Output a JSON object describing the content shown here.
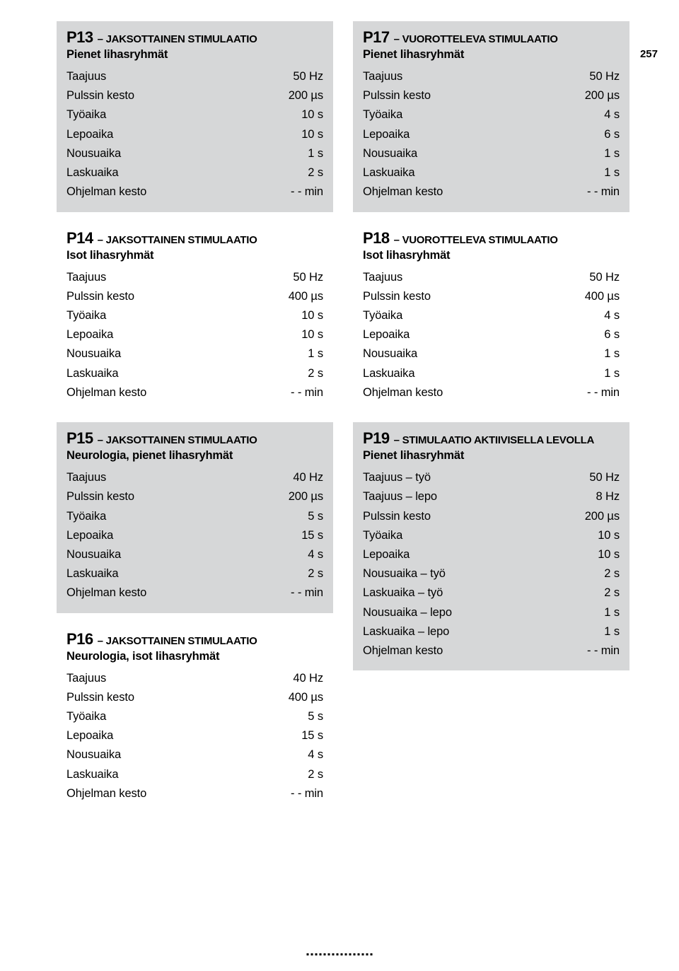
{
  "page_number": "257",
  "colors": {
    "gray_bg": "#d6d7d8",
    "text": "#000000",
    "page_bg": "#ffffff"
  },
  "left": [
    {
      "bg": "gray",
      "pnum": "P13",
      "ptitle": " – JAKSOTTAINEN STIMULAATIO",
      "subtitle": "Pienet lihasryhmät",
      "rows": [
        {
          "label": "Taajuus",
          "value": "50 Hz"
        },
        {
          "label": "Pulssin kesto",
          "value": "200 µs"
        },
        {
          "label": "Työaika",
          "value": "10 s"
        },
        {
          "label": "Lepoaika",
          "value": "10 s"
        },
        {
          "label": "Nousuaika",
          "value": "1 s"
        },
        {
          "label": "Laskuaika",
          "value": "2 s"
        },
        {
          "label": "Ohjelman kesto",
          "value": "- - min"
        }
      ]
    },
    {
      "bg": "white",
      "pnum": "P14",
      "ptitle": " – JAKSOTTAINEN STIMULAATIO",
      "subtitle": "Isot lihasryhmät",
      "rows": [
        {
          "label": "Taajuus",
          "value": "50 Hz"
        },
        {
          "label": "Pulssin kesto",
          "value": "400 µs"
        },
        {
          "label": "Työaika",
          "value": "10 s"
        },
        {
          "label": "Lepoaika",
          "value": "10 s"
        },
        {
          "label": "Nousuaika",
          "value": "1 s"
        },
        {
          "label": "Laskuaika",
          "value": "2 s"
        },
        {
          "label": "Ohjelman kesto",
          "value": "- - min"
        }
      ]
    },
    {
      "bg": "gray",
      "pnum": "P15",
      "ptitle": " – JAKSOTTAINEN STIMULAATIO",
      "subtitle": "Neurologia, pienet lihasryhmät",
      "rows": [
        {
          "label": "Taajuus",
          "value": "40 Hz"
        },
        {
          "label": "Pulssin kesto",
          "value": "200 µs"
        },
        {
          "label": "Työaika",
          "value": "5 s"
        },
        {
          "label": "Lepoaika",
          "value": "15 s"
        },
        {
          "label": "Nousuaika",
          "value": "4 s"
        },
        {
          "label": "Laskuaika",
          "value": "2 s"
        },
        {
          "label": "Ohjelman kesto",
          "value": "- - min"
        }
      ]
    },
    {
      "bg": "white",
      "pnum": "P16",
      "ptitle": " – JAKSOTTAINEN STIMULAATIO",
      "subtitle": "Neurologia, isot lihasryhmät",
      "rows": [
        {
          "label": "Taajuus",
          "value": "40 Hz"
        },
        {
          "label": "Pulssin kesto",
          "value": "400 µs"
        },
        {
          "label": "Työaika",
          "value": "5 s"
        },
        {
          "label": "Lepoaika",
          "value": "15 s"
        },
        {
          "label": "Nousuaika",
          "value": "4 s"
        },
        {
          "label": "Laskuaika",
          "value": "2 s"
        },
        {
          "label": "Ohjelman kesto",
          "value": "- - min"
        }
      ]
    }
  ],
  "right": [
    {
      "bg": "gray",
      "pnum": "P17",
      "ptitle": " – VUOROTTELEVA STIMULAATIO",
      "subtitle": "Pienet lihasryhmät",
      "rows": [
        {
          "label": "Taajuus",
          "value": "50 Hz"
        },
        {
          "label": "Pulssin kesto",
          "value": "200 µs"
        },
        {
          "label": "Työaika",
          "value": "4 s"
        },
        {
          "label": "Lepoaika",
          "value": "6 s"
        },
        {
          "label": "Nousuaika",
          "value": "1 s"
        },
        {
          "label": "Laskuaika",
          "value": "1 s"
        },
        {
          "label": "Ohjelman kesto",
          "value": "- - min"
        }
      ]
    },
    {
      "bg": "white",
      "pnum": "P18",
      "ptitle": " – VUOROTTELEVA STIMULAATIO",
      "subtitle": "Isot lihasryhmät",
      "rows": [
        {
          "label": "Taajuus",
          "value": "50 Hz"
        },
        {
          "label": "Pulssin kesto",
          "value": "400 µs"
        },
        {
          "label": "Työaika",
          "value": "4 s"
        },
        {
          "label": "Lepoaika",
          "value": "6 s"
        },
        {
          "label": "Nousuaika",
          "value": "1 s"
        },
        {
          "label": "Laskuaika",
          "value": "1 s"
        },
        {
          "label": "Ohjelman kesto",
          "value": "- - min"
        }
      ]
    },
    {
      "bg": "gray",
      "pnum": "P19",
      "ptitle": " – STIMULAATIO AKTIIVISELLA LEVOLLA",
      "subtitle": "Pienet lihasryhmät",
      "rows": [
        {
          "label": "Taajuus – työ",
          "value": "50 Hz"
        },
        {
          "label": "Taajuus – lepo",
          "value": "8 Hz"
        },
        {
          "label": "Pulssin kesto",
          "value": "200 µs"
        },
        {
          "label": "Työaika",
          "value": "10 s"
        },
        {
          "label": "Lepoaika",
          "value": "10 s"
        },
        {
          "label": "Nousuaika – työ",
          "value": "2 s"
        },
        {
          "label": "Laskuaika – työ",
          "value": "2 s"
        },
        {
          "label": "Nousuaika – lepo",
          "value": "1 s"
        },
        {
          "label": "Laskuaika – lepo",
          "value": "1 s"
        },
        {
          "label": "Ohjelman kesto",
          "value": "- - min"
        }
      ]
    }
  ]
}
